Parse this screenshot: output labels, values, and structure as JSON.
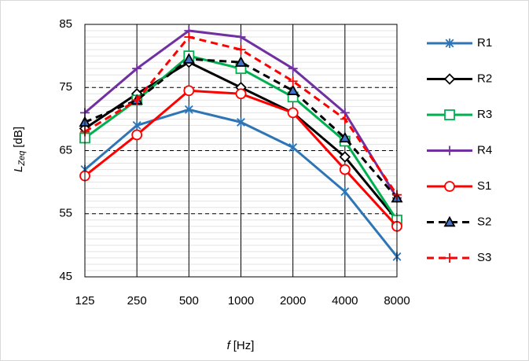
{
  "chart_data": {
    "type": "line",
    "x_label": {
      "symbol": "f",
      "unit": "[Hz]"
    },
    "y_label": {
      "symbol": "L",
      "subscript": "Zeq",
      "unit": "[dB]"
    },
    "categories": [
      "125",
      "250",
      "500",
      "1000",
      "2000",
      "4000",
      "8000"
    ],
    "ylim": [
      45,
      85
    ],
    "yticks": [
      45,
      55,
      65,
      75,
      85
    ],
    "grid": true,
    "minor_grid": true,
    "legend": "right",
    "series": [
      {
        "name": "R1",
        "color": "#2e75b6",
        "marker": "x",
        "dashed": false,
        "values": [
          62,
          69,
          71.5,
          69.5,
          65.5,
          58.5,
          48.2
        ]
      },
      {
        "name": "R2",
        "color": "#000000",
        "marker": "diamond",
        "dashed": false,
        "values": [
          68.5,
          74,
          79,
          75,
          71,
          64,
          54
        ]
      },
      {
        "name": "R3",
        "color": "#00b050",
        "marker": "square",
        "dashed": false,
        "values": [
          67,
          73,
          80,
          78,
          73.5,
          66.5,
          54
        ]
      },
      {
        "name": "R4",
        "color": "#7030a0",
        "marker": "plus",
        "dashed": false,
        "values": [
          71,
          78,
          84,
          83,
          78,
          71,
          57.5
        ]
      },
      {
        "name": "S1",
        "color": "#ff0000",
        "marker": "circle",
        "dashed": false,
        "values": [
          61,
          67.5,
          74.5,
          74,
          71,
          62,
          53
        ]
      },
      {
        "name": "S2",
        "color": "#000000",
        "marker": "triangle",
        "dashed": true,
        "values": [
          69.5,
          73,
          79.5,
          79,
          74.5,
          67,
          57.5
        ]
      },
      {
        "name": "S3",
        "color": "#ff0000",
        "marker": "plus",
        "dashed": true,
        "values": [
          68,
          73,
          83,
          81,
          76,
          70,
          58
        ]
      }
    ]
  }
}
